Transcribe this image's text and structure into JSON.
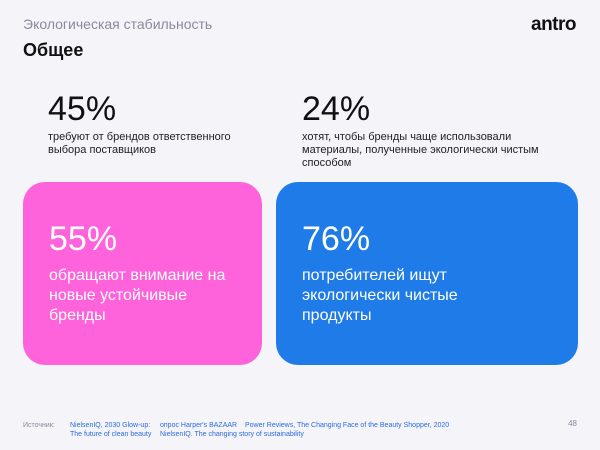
{
  "header": {
    "subtitle": "Экологическая стабильность",
    "title": "Общее",
    "logo": "antro"
  },
  "stats": [
    {
      "value": "45%",
      "text": "требуют от брендов ответственного выбора поставщиков"
    },
    {
      "value": "24%",
      "text": "хотят, чтобы бренды чаще использовали материалы, полученные экологически чистым способом"
    }
  ],
  "cards": [
    {
      "value": "55%",
      "text": "обращают внимание на новые устойчивые бренды"
    },
    {
      "value": "76%",
      "text": "потребителей ищут экологически чистые продукты"
    }
  ],
  "footer": {
    "label": "Источник:",
    "sources": [
      "NielsenIQ, 2030 Glow-up: The future of clean beauty",
      "опрос Harper's BAZAAR",
      "NielsenIQ. The changing story of sustainability",
      "Power Reviews, The Changing Face of the Beauty Shopper, 2020"
    ],
    "page": "48"
  }
}
